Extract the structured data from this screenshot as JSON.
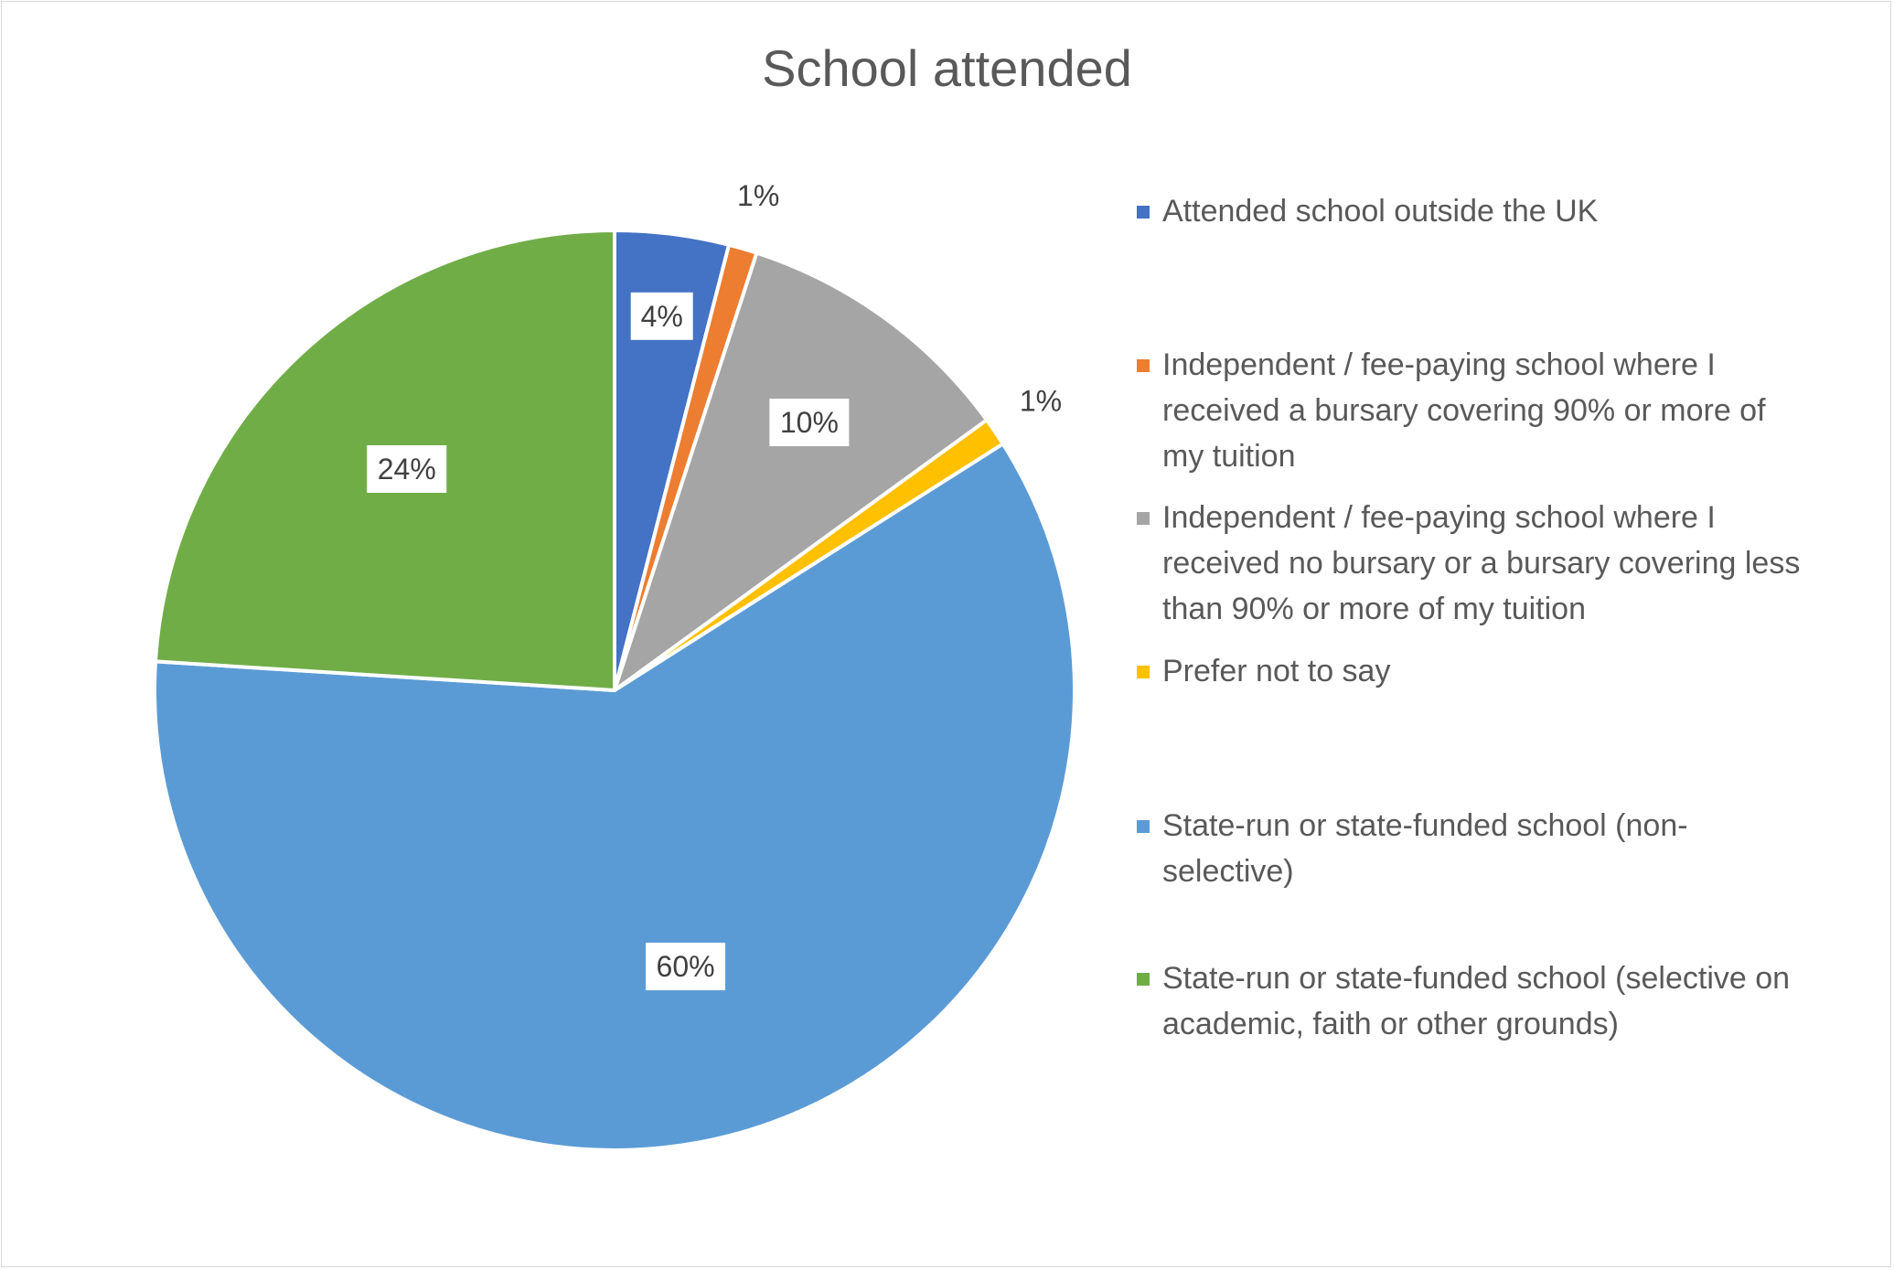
{
  "chart_data": {
    "type": "pie",
    "title": "School attended",
    "categories": [
      "Attended school outside the UK",
      "Independent / fee-paying school where I received a bursary covering 90% or more of my tuition",
      "Independent / fee-paying school where I received no bursary or a bursary covering less than 90% or more of my tuition",
      "Prefer not to say",
      "State-run or state-funded school (non-selective)",
      "State-run or state-funded school (selective on academic, faith or other grounds)"
    ],
    "values": [
      4,
      1,
      10,
      1,
      60,
      24
    ],
    "labels": [
      "4%",
      "1%",
      "10%",
      "1%",
      "60%",
      "24%"
    ],
    "colors": [
      "#4472c4",
      "#ed7d31",
      "#a5a5a5",
      "#ffc000",
      "#5b9bd5",
      "#70ad47"
    ],
    "legend_position": "right"
  }
}
